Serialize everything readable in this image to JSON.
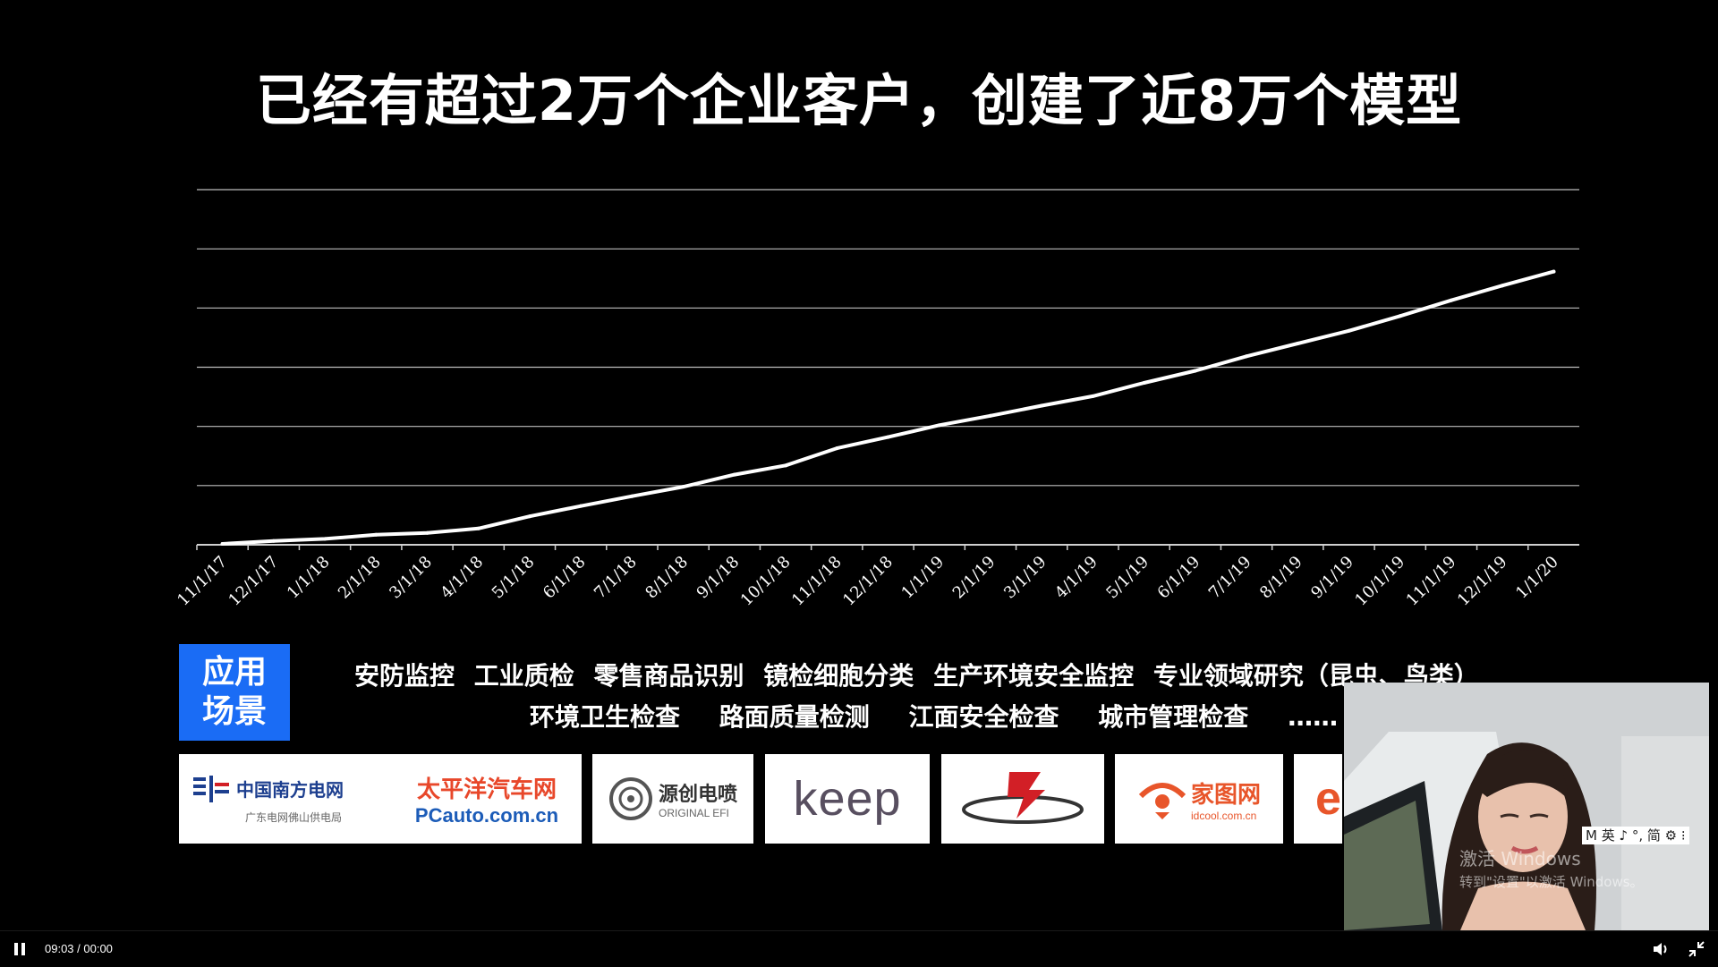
{
  "slide": {
    "title": "已经有超过2万个企业客户，创建了近8万个模型",
    "apps_label_line1": "应用",
    "apps_label_line2": "场景",
    "apps_row1": [
      "安防监控",
      "工业质检",
      "零售商品识别",
      "镜检细胞分类",
      "生产环境安全监控",
      "专业领域研究（昆虫、鸟类）"
    ],
    "apps_row2": [
      "环境卫生检查",
      "路面质量检测",
      "江面安全检查",
      "城市管理检查",
      "……"
    ],
    "logos": [
      {
        "main": "中国南方电网",
        "sub": "广东电网佛山供电局",
        "color": "#1d3f8f"
      },
      {
        "main": "太平洋汽车网",
        "sub": "PCauto.com.cn",
        "color": "#e8472a"
      },
      {
        "main": "源创电喷",
        "sub": "ORIGINAL EFI",
        "color": "#333333"
      },
      {
        "main": "keep",
        "sub": "",
        "color": "#584f60"
      },
      {
        "main": "",
        "sub": "",
        "color": "#d21f26"
      },
      {
        "main": "家图网",
        "sub": "idcool.com.cn",
        "color": "#e8552a"
      },
      {
        "main": "e",
        "sub": "",
        "color": "#e8552a"
      }
    ]
  },
  "chart_data": {
    "type": "line",
    "title": "",
    "xlabel": "",
    "ylabel": "",
    "y_tick_labels_shown": false,
    "grid": true,
    "color": "#ffffff",
    "categories": [
      "11/1/17",
      "12/1/17",
      "1/1/18",
      "2/1/18",
      "3/1/18",
      "4/1/18",
      "5/1/18",
      "6/1/18",
      "7/1/18",
      "8/1/18",
      "9/1/18",
      "10/1/18",
      "11/1/18",
      "12/1/18",
      "1/1/19",
      "2/1/19",
      "3/1/19",
      "4/1/19",
      "5/1/19",
      "6/1/19",
      "7/1/19",
      "8/1/19",
      "9/1/19",
      "10/1/19",
      "11/1/19",
      "12/1/19",
      "1/1/20"
    ],
    "values": [
      0.3,
      1.3,
      2.0,
      3.4,
      4.0,
      5.5,
      9.6,
      13.1,
      16.4,
      19.6,
      23.7,
      26.8,
      32.6,
      36.4,
      40.4,
      43.6,
      47.0,
      50.2,
      54.7,
      58.8,
      63.7,
      68.0,
      72.3,
      77.3,
      82.6,
      87.6,
      92.3
    ],
    "ylim": [
      0,
      120
    ],
    "y_gridlines": 6
  },
  "player": {
    "time": "09:03 / 00:00"
  },
  "overlay": {
    "ime": "M 英 ♪ °, 简 ⚙ ⁝",
    "watermark_line1": "激活 Windows",
    "watermark_line2": "转到\"设置\"以激活 Windows。"
  }
}
